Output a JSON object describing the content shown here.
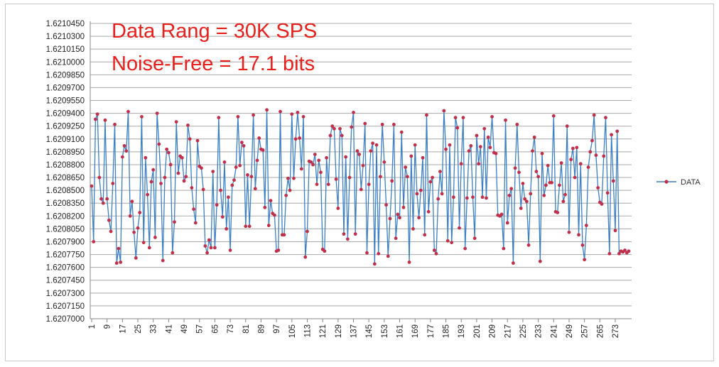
{
  "chart_data": {
    "type": "line",
    "title": "",
    "annotations": [
      "Data Rang = 30K SPS",
      "Noise-Free = 17.1 bits"
    ],
    "xlabel": "",
    "ylabel": "",
    "ylim": [
      1.6207,
      1.621045
    ],
    "yticks": [
      "1.6210450",
      "1.6210300",
      "1.6210150",
      "1.6210000",
      "1.6209850",
      "1.6209700",
      "1.6209550",
      "1.6209400",
      "1.6209250",
      "1.6209100",
      "1.6208950",
      "1.6208800",
      "1.6208650",
      "1.6208500",
      "1.6208350",
      "1.6208200",
      "1.6208050",
      "1.6207900",
      "1.6207750",
      "1.6207600",
      "1.6207450",
      "1.6207300",
      "1.6207150",
      "1.6207000"
    ],
    "xticks": [
      "1",
      "9",
      "17",
      "25",
      "33",
      "41",
      "49",
      "57",
      "65",
      "73",
      "81",
      "89",
      "97",
      "105",
      "113",
      "121",
      "129",
      "137",
      "145",
      "153",
      "161",
      "169",
      "177",
      "185",
      "193",
      "201",
      "209",
      "217",
      "225",
      "233",
      "241",
      "249",
      "257",
      "265",
      "273"
    ],
    "grid": true,
    "legend_position": "right",
    "line_color": "#3b7fc4",
    "marker_color": "#c0304a",
    "annotation_color": "#e8201c",
    "series": [
      {
        "name": "DATA",
        "values": [
          1.620855,
          1.62079,
          1.620933,
          1.620939,
          1.620865,
          1.62084,
          1.620835,
          1.620932,
          1.62084,
          1.620815,
          1.620802,
          1.620858,
          1.620927,
          1.620765,
          1.620782,
          1.620766,
          1.620889,
          1.620902,
          1.620896,
          1.620942,
          1.62082,
          1.620837,
          1.620801,
          1.620771,
          1.620806,
          1.620824,
          1.620936,
          1.620789,
          1.620888,
          1.620845,
          1.620783,
          1.62086,
          1.620874,
          1.620795,
          1.62094,
          1.620904,
          1.620858,
          1.620768,
          1.620865,
          1.620898,
          1.620894,
          1.62088,
          1.620777,
          1.620813,
          1.62093,
          1.62087,
          1.62089,
          1.620888,
          1.620861,
          1.620866,
          1.620926,
          1.62091,
          1.620853,
          1.620828,
          1.620812,
          1.620908,
          1.620878,
          1.620876,
          1.620851,
          1.620785,
          1.620777,
          1.620792,
          1.620783,
          1.620872,
          1.620783,
          1.620833,
          1.620935,
          1.62085,
          1.620819,
          1.620883,
          1.620805,
          1.620842,
          1.62078,
          1.620856,
          1.620862,
          1.620877,
          1.620936,
          1.620879,
          1.620906,
          1.620902,
          1.620808,
          1.620868,
          1.620808,
          1.620866,
          1.620938,
          1.620852,
          1.620885,
          1.620911,
          1.620898,
          1.620897,
          1.62083,
          1.620944,
          1.620809,
          1.620838,
          1.620823,
          1.620821,
          1.620779,
          1.62078,
          1.620942,
          1.620798,
          1.620798,
          1.620844,
          1.620864,
          1.62085,
          1.620939,
          1.620864,
          1.62091,
          1.620941,
          1.620911,
          1.620875,
          1.620936,
          1.620772,
          1.620802,
          1.620884,
          1.620883,
          1.62088,
          1.620892,
          1.620857,
          1.620885,
          1.620871,
          1.620781,
          1.620779,
          1.620888,
          1.620857,
          1.620914,
          1.620925,
          1.620922,
          1.620863,
          1.620829,
          1.620922,
          1.620914,
          1.620799,
          1.620889,
          1.620793,
          1.620865,
          1.620924,
          1.620941,
          1.620799,
          1.620896,
          1.620892,
          1.620851,
          1.620879,
          1.620928,
          1.620777,
          1.620857,
          1.620896,
          1.620905,
          1.620764,
          1.620903,
          1.620776,
          1.620866,
          1.620927,
          1.620883,
          1.620833,
          1.620773,
          1.620817,
          1.620861,
          1.620927,
          1.620794,
          1.620822,
          1.620818,
          1.620918,
          1.62083,
          1.620877,
          1.620866,
          1.620766,
          1.62089,
          1.620805,
          1.620903,
          1.620846,
          1.620818,
          1.62085,
          1.620888,
          1.620798,
          1.620938,
          1.620825,
          1.62086,
          1.620865,
          1.62078,
          1.620776,
          1.62084,
          1.620872,
          1.620846,
          1.620943,
          1.620898,
          1.620791,
          1.620903,
          1.620789,
          1.620842,
          1.620935,
          1.620923,
          1.620806,
          1.620881,
          1.620935,
          1.620782,
          1.620841,
          1.620896,
          1.620902,
          1.620842,
          1.620794,
          1.620914,
          1.620881,
          1.620901,
          1.620842,
          1.620922,
          1.620841,
          1.620912,
          1.6209,
          1.620936,
          1.620894,
          1.620893,
          1.620821,
          1.62082,
          1.620822,
          1.620782,
          1.620932,
          1.620812,
          1.620844,
          1.620852,
          1.620765,
          1.620876,
          1.620927,
          1.620871,
          1.620829,
          1.620858,
          1.62084,
          1.620837,
          1.620786,
          1.620846,
          1.620896,
          1.620912,
          1.620872,
          1.620866,
          1.620767,
          1.620893,
          1.620844,
          1.620856,
          1.620879,
          1.620859,
          1.620859,
          1.620937,
          1.620825,
          1.620824,
          1.620856,
          1.620882,
          1.620837,
          1.620845,
          1.620925,
          1.620801,
          1.620886,
          1.620899,
          1.620865,
          1.6209,
          1.620798,
          1.620881,
          1.620786,
          1.620769,
          1.620809,
          1.620877,
          1.620895,
          1.620908,
          1.620938,
          1.620891,
          1.620853,
          1.620836,
          1.620834,
          1.62089,
          1.620935,
          1.620847,
          1.620776,
          1.620915,
          1.620861,
          1.620803,
          1.620919,
          1.620776,
          1.620779,
          1.620778,
          1.62078,
          1.620777,
          1.620779
        ]
      }
    ]
  }
}
